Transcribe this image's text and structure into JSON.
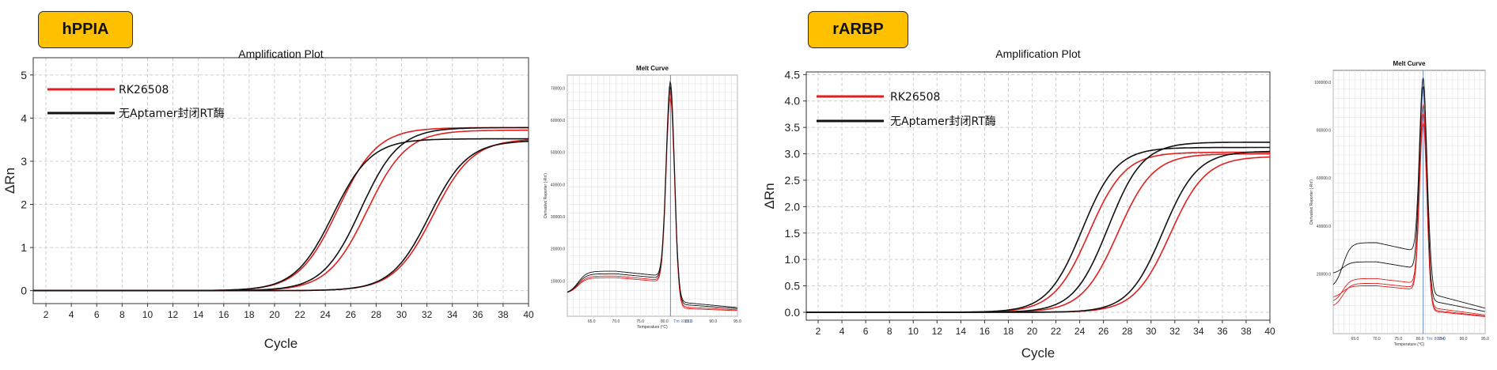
{
  "panels": [
    {
      "tag": "hPPIA",
      "amp": {
        "title": "Amplification Plot",
        "xlabel": "Cycle",
        "ylabel": "ΔRn",
        "xlim": [
          1,
          40
        ],
        "ylim": [
          -0.3,
          5.4
        ],
        "yticks": [
          0,
          1,
          2,
          3,
          4,
          5
        ],
        "ytick_labels": [
          "0",
          "1",
          "2",
          "3",
          "4",
          "5"
        ],
        "xticks": [
          2,
          4,
          6,
          8,
          10,
          12,
          14,
          16,
          18,
          20,
          22,
          24,
          26,
          28,
          30,
          32,
          34,
          36,
          38,
          40
        ],
        "legend": [
          {
            "label": "RK26508",
            "color": "#e02020"
          },
          {
            "label": "无Aptamer封闭RT酶",
            "color": "#111111"
          }
        ],
        "curves": [
          {
            "color": "#e02020",
            "ct": 25.0,
            "plateau": 3.78,
            "slope": 1.55
          },
          {
            "color": "#e02020",
            "ct": 27.3,
            "plateau": 3.72,
            "slope": 1.55
          },
          {
            "color": "#e02020",
            "ct": 32.5,
            "plateau": 3.52,
            "slope": 1.55
          },
          {
            "color": "#111111",
            "ct": 24.6,
            "plateau": 3.52,
            "slope": 1.5
          },
          {
            "color": "#111111",
            "ct": 26.8,
            "plateau": 3.78,
            "slope": 1.5
          },
          {
            "color": "#111111",
            "ct": 32.2,
            "plateau": 3.48,
            "slope": 1.5
          }
        ]
      },
      "melt": {
        "title": "Melt Curve",
        "xlabel": "Temperature (°C)",
        "ylabel": "Derivative Reporter (-Rn')",
        "yticks": [
          10000,
          20000,
          30000,
          40000,
          50000,
          60000,
          70000
        ],
        "ytick_labels": [
          "10000.0",
          "20000.0",
          "30000.0",
          "40000.0",
          "50000.0",
          "60000.0",
          "70000.0"
        ],
        "ylim": [
          -1000,
          74000
        ],
        "xticks": [
          65,
          70,
          75,
          80,
          85,
          90,
          95
        ],
        "xtick_labels": [
          "65.0",
          "70.0",
          "75.0",
          "80.0",
          "85.0",
          "90.0",
          "95.0"
        ],
        "xlim": [
          60,
          95
        ],
        "tm_label": "Tm: 81.21",
        "tm": 81.21,
        "curves": [
          {
            "color": "#e02020",
            "base": 11500,
            "peak": 70000,
            "tail": 2000
          },
          {
            "color": "#e02020",
            "base": 11000,
            "peak": 68000,
            "tail": 1500
          },
          {
            "color": "#111111",
            "base": 13000,
            "peak": 73000,
            "tail": 3500
          },
          {
            "color": "#111111",
            "base": 12200,
            "peak": 71500,
            "tail": 2800
          }
        ]
      }
    },
    {
      "tag": "rARBP",
      "amp": {
        "title": "Amplification Plot",
        "xlabel": "Cycle",
        "ylabel": "ΔRn",
        "xlim": [
          1,
          40
        ],
        "ylim": [
          -0.15,
          4.55
        ],
        "yticks": [
          0,
          0.5,
          1,
          1.5,
          2,
          2.5,
          3,
          3.5,
          4,
          4.5
        ],
        "ytick_labels": [
          "0.0",
          "0.5",
          "1.0",
          "1.5",
          "2.0",
          "2.5",
          "3.0",
          "3.5",
          "4.0",
          "4.5"
        ],
        "xticks": [
          2,
          4,
          6,
          8,
          10,
          12,
          14,
          16,
          18,
          20,
          22,
          24,
          26,
          28,
          30,
          32,
          34,
          36,
          38,
          40
        ],
        "legend": [
          {
            "label": "RK26508",
            "color": "#e02020"
          },
          {
            "label": "无Aptamer封闭RT酶",
            "color": "#111111"
          }
        ],
        "curves": [
          {
            "color": "#e02020",
            "ct": 24.8,
            "plateau": 3.03,
            "slope": 1.5
          },
          {
            "color": "#e02020",
            "ct": 27.2,
            "plateau": 3.0,
            "slope": 1.5
          },
          {
            "color": "#e02020",
            "ct": 31.6,
            "plateau": 2.95,
            "slope": 1.5
          },
          {
            "color": "#111111",
            "ct": 24.2,
            "plateau": 3.12,
            "slope": 1.45
          },
          {
            "color": "#111111",
            "ct": 26.4,
            "plateau": 3.22,
            "slope": 1.45
          },
          {
            "color": "#111111",
            "ct": 31.0,
            "plateau": 3.05,
            "slope": 1.45
          }
        ]
      },
      "melt": {
        "title": "Melt Curve",
        "xlabel": "Temperature (°C)",
        "ylabel": "Derivative Reporter (-Rn')",
        "yticks": [
          20000,
          40000,
          60000,
          80000,
          100000
        ],
        "ytick_labels": [
          "20000.0",
          "40000.0",
          "60000.0",
          "80000.0",
          "100000.0"
        ],
        "ylim": [
          -5000,
          105000
        ],
        "xticks": [
          65,
          70,
          75,
          80,
          85,
          90,
          95
        ],
        "xtick_labels": [
          "65.0",
          "70.0",
          "75.0",
          "80.0",
          "85.0",
          "90.0",
          "95.0"
        ],
        "xlim": [
          60,
          95
        ],
        "tm_label": "Tm: 80.74",
        "tm": 80.74,
        "curves": [
          {
            "color": "#e02020",
            "base": 18000,
            "peak": 92000,
            "tail": 6000,
            "start": 8000
          },
          {
            "color": "#e02020",
            "base": 16000,
            "peak": 88000,
            "tail": 5000,
            "start": 6000
          },
          {
            "color": "#e02020",
            "base": 15000,
            "peak": 84000,
            "tail": 4500,
            "start": 10000
          },
          {
            "color": "#111111",
            "base": 33000,
            "peak": 104000,
            "tail": 12000,
            "start": 14000,
            "double": true
          },
          {
            "color": "#111111",
            "base": 25000,
            "peak": 100000,
            "tail": 9000,
            "start": 20000
          }
        ]
      }
    }
  ]
}
